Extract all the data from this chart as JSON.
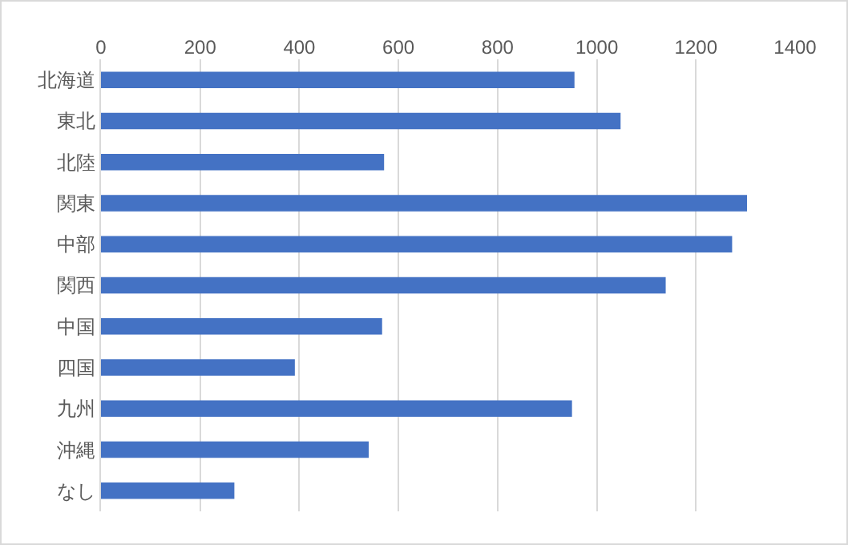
{
  "chart_data": {
    "type": "bar",
    "orientation": "horizontal",
    "categories": [
      "北海道",
      "東北",
      "北陸",
      "関東",
      "中部",
      "関西",
      "中国",
      "四国",
      "九州",
      "沖縄",
      "なし"
    ],
    "values": [
      955,
      1048,
      571,
      1303,
      1273,
      1139,
      567,
      391,
      950,
      540,
      269
    ],
    "color": "#4472c4",
    "xlim": [
      0,
      1400
    ],
    "xticks": [
      0,
      200,
      400,
      600,
      800,
      1000,
      1200,
      1400
    ],
    "grid": "x"
  }
}
